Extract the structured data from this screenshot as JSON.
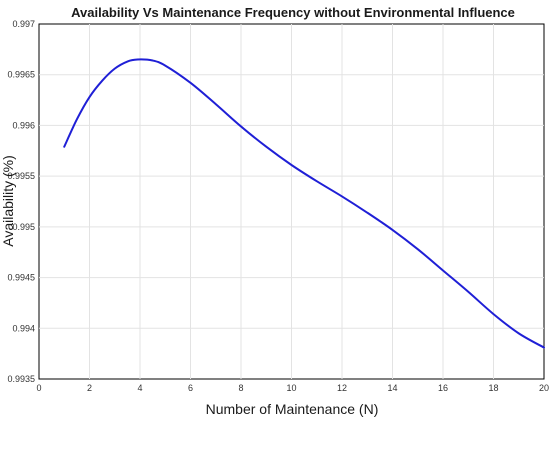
{
  "chart_data": {
    "type": "line",
    "title": "Availability Vs Maintenance Frequency without Environmental Influence",
    "xlabel": "Number of Maintenance (N)",
    "ylabel": "Availability (%)",
    "xlim": [
      0,
      20
    ],
    "ylim": [
      0.9935,
      0.997
    ],
    "xticks": [
      0,
      2,
      4,
      6,
      8,
      10,
      12,
      14,
      16,
      18,
      20
    ],
    "xtick_labels": [
      "0",
      "2",
      "4",
      "6",
      "8",
      "10",
      "12",
      "14",
      "16",
      "18",
      "20"
    ],
    "yticks": [
      0.9935,
      0.994,
      0.9945,
      0.995,
      0.9955,
      0.996,
      0.9965,
      0.997
    ],
    "ytick_labels": [
      "0.9935",
      "0.994",
      "0.9945",
      "0.995",
      "0.9955",
      "0.996",
      "0.9965",
      "0.997"
    ],
    "grid": true,
    "series": [
      {
        "color": "#1f1fd6",
        "x": [
          1,
          1.5,
          2,
          2.5,
          3,
          3.5,
          3.9,
          4.5,
          5,
          6,
          7,
          8,
          9,
          10,
          11,
          12,
          13,
          14,
          15,
          16,
          17,
          18,
          19,
          20
        ],
        "y": [
          0.99579,
          0.99606,
          0.99628,
          0.99644,
          0.99656,
          0.99663,
          0.99665,
          0.99664,
          0.99659,
          0.99642,
          0.99621,
          0.99599,
          0.99579,
          0.99561,
          0.99545,
          0.9953,
          0.99514,
          0.99497,
          0.99478,
          0.99457,
          0.99436,
          0.99414,
          0.99395,
          0.99381
        ]
      }
    ]
  }
}
